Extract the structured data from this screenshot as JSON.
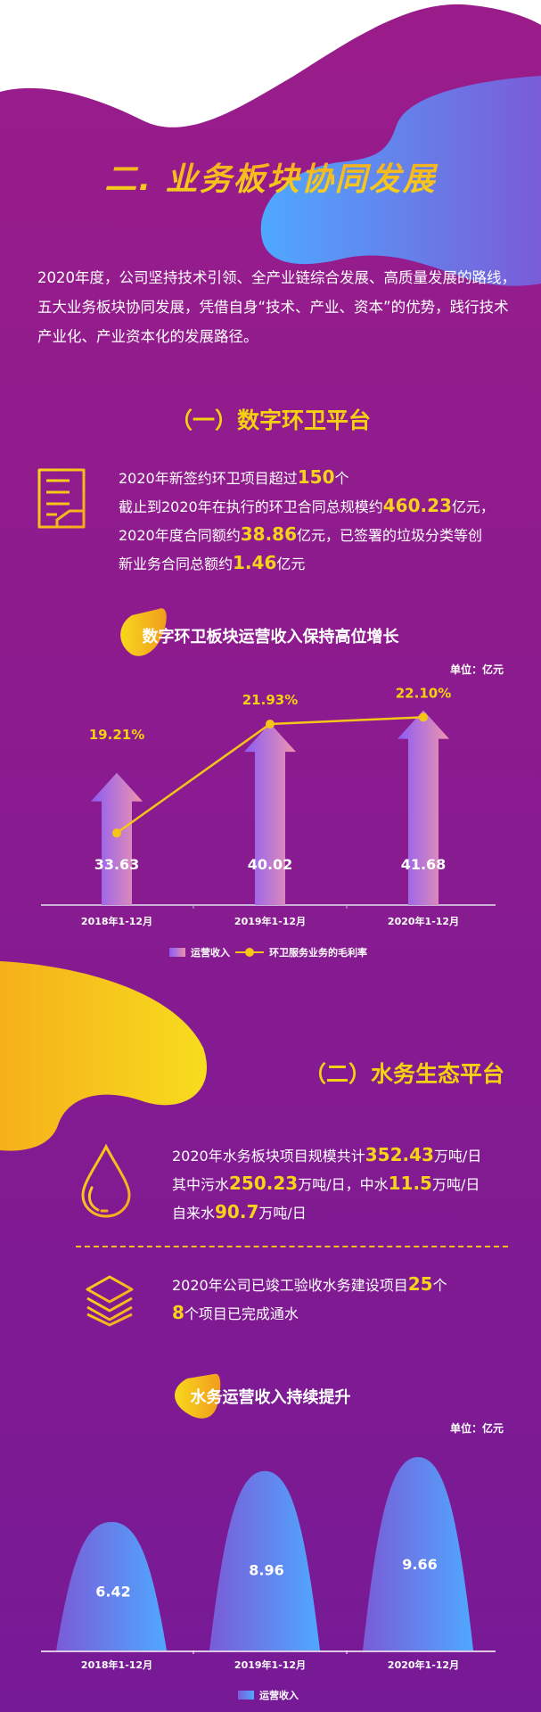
{
  "colors": {
    "purple": "#8f1d8a",
    "yellow": "#f7d41a",
    "orange": "#f5a81e",
    "blue": "#4fa8ff",
    "violet": "#7a5cd8"
  },
  "header": {
    "title": "二. 业务板块协同发展"
  },
  "intro": {
    "lines": [
      "2020年度，公司坚持技术引领、全产业链综合发展、高质量发展的路线，",
      "五大业务板块协同发展，凭借自身“技术、产业、资本”的优势，践行技术",
      "产业化、产业资本化的发展路径。"
    ]
  },
  "sanitation": {
    "title": "（一）数字环卫平台",
    "icon": "document-icon",
    "lines": [
      [
        "2020年新签约环卫项目超过",
        "150",
        "个"
      ],
      [
        "截止到2020年在执行的环卫合同总规模约",
        "460.23",
        "亿元，"
      ],
      [
        "2020年度合同额约",
        "38.86",
        "亿元，已签署的垃圾分类等创"
      ],
      [
        "新业务合同总额约",
        "1.46",
        "亿元"
      ]
    ]
  },
  "water": {
    "title": "（二）水务生态平台",
    "icon": "water-drop-icon",
    "lines": [
      [
        "2020年水务板块项目规模共计",
        "352.43",
        "万吨/日"
      ],
      [
        "其中污水",
        "250.23",
        "万吨/日，中水",
        "11.5",
        "万吨/日"
      ],
      [
        "自来水",
        "90.7",
        "万吨/日"
      ]
    ],
    "icon2": "layers-icon",
    "lines2": [
      [
        "2020年公司已竣工验收水务建设项目",
        "25",
        "个"
      ],
      [
        "8",
        "个项目已完成通水"
      ]
    ]
  },
  "chart_data": [
    {
      "type": "bar",
      "title": "数字环卫板块运营收入保持高位增长",
      "unit": "单位：亿元",
      "categories": [
        "2018年1-12月",
        "2019年1-12月",
        "2020年1-12月"
      ],
      "series": [
        {
          "name": "运营收入",
          "type": "bar",
          "values": [
            33.63,
            40.02,
            41.68
          ],
          "labels": [
            "33.63",
            "40.02",
            "41.68"
          ],
          "ylim": [
            16.6,
            46
          ]
        },
        {
          "name": "环卫服务业务的毛利率",
          "type": "line",
          "values": [
            19.21,
            21.93,
            22.1
          ],
          "labels": [
            "19.21%",
            "21.93%",
            "22.10%"
          ],
          "ylim": [
            17.41,
            23.11
          ]
        }
      ],
      "legend": "bottom"
    },
    {
      "type": "bar",
      "title": "水务运营收入持续提升",
      "unit": "单位：亿元",
      "categories": [
        "2018年1-12月",
        "2019年1-12月",
        "2020年1-12月"
      ],
      "series": [
        {
          "name": "运营收入",
          "values": [
            6.42,
            8.96,
            9.66
          ],
          "labels": [
            "6.42",
            "8.96",
            "9.66"
          ],
          "ylim": [
            0,
            11.4
          ]
        }
      ],
      "legend": "bottom"
    }
  ]
}
